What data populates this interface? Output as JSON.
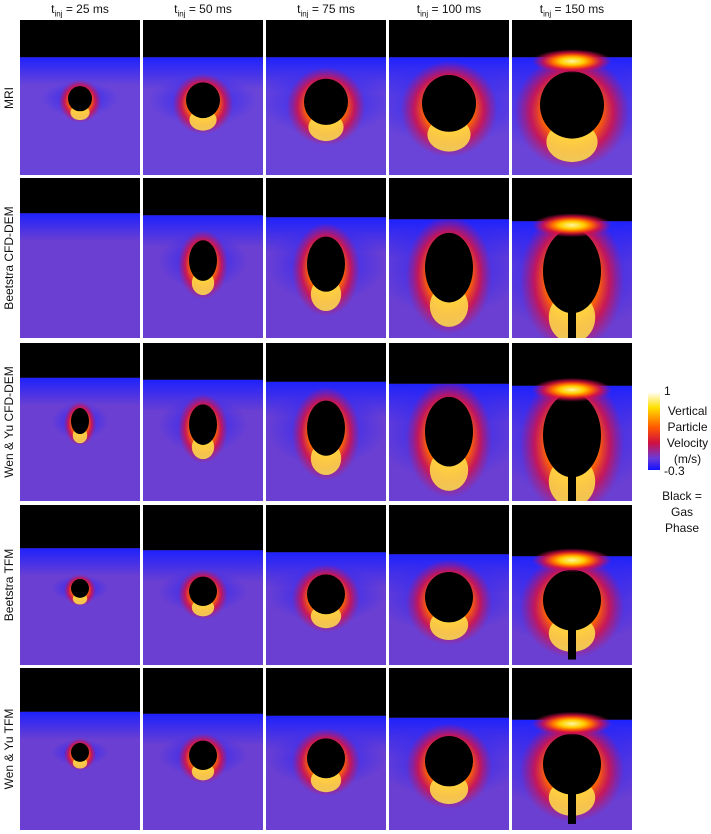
{
  "columns": [
    {
      "base": "t",
      "sub": "inj",
      "rest": " = 25 ms"
    },
    {
      "base": "t",
      "sub": "inj",
      "rest": " = 50 ms"
    },
    {
      "base": "t",
      "sub": "inj",
      "rest": " = 75 ms"
    },
    {
      "base": "t",
      "sub": "inj",
      "rest": " = 100 ms"
    },
    {
      "base": "t",
      "sub": "inj",
      "rest": " = 150 ms"
    }
  ],
  "rows": [
    "MRI",
    "Beetstra CFD-DEM",
    "Wen & Yu CFD-DEM",
    "Beetstra TFM",
    "Wen & Yu TFM"
  ],
  "colorbar": {
    "max": 1,
    "label": "Vertical Particle Velocity (m/s)",
    "min": -0.3,
    "note": "Black = Gas Phase"
  }
}
